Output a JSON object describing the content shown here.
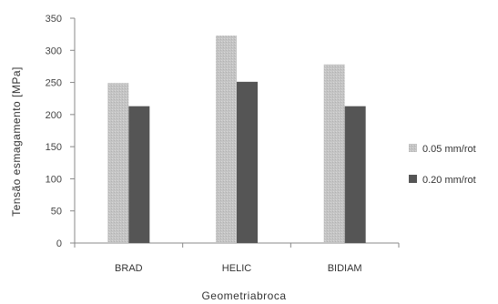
{
  "chart_data": {
    "type": "bar",
    "categories": [
      "BRAD",
      "HELIC",
      "BIDIAM"
    ],
    "series": [
      {
        "name": "0.05 mm/rot",
        "values": [
          249,
          323,
          278
        ],
        "color": "#bdbdbd"
      },
      {
        "name": "0.20 mm/rot",
        "values": [
          213,
          251,
          213
        ],
        "color": "#555555"
      }
    ],
    "xlabel": "Geometriabroca",
    "ylabel": "Tensão esmagamento [MPa]",
    "ylim": [
      0,
      350
    ],
    "yticks": [
      0,
      50,
      100,
      150,
      200,
      250,
      300,
      350
    ],
    "grid": false,
    "legend_position": "right"
  }
}
